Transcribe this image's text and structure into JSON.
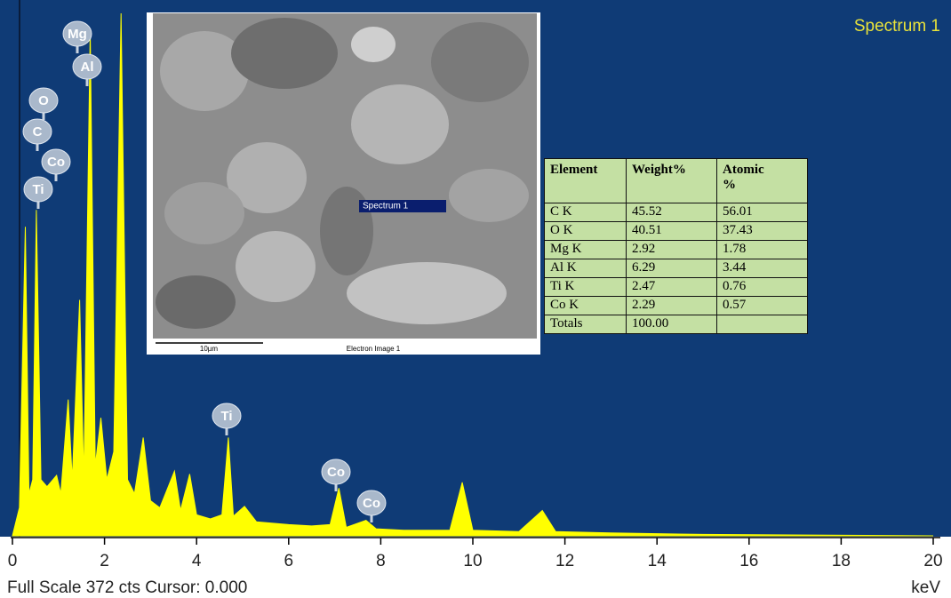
{
  "chart_data": {
    "type": "area",
    "title": "Spectrum 1",
    "x_label": "keV",
    "footer": "Full Scale 372 cts Cursor: 0.000",
    "x": [
      0.0,
      0.15,
      0.28,
      0.36,
      0.44,
      0.52,
      0.62,
      0.75,
      0.96,
      1.05,
      1.21,
      1.3,
      1.46,
      1.55,
      1.69,
      1.8,
      1.92,
      2.05,
      2.2,
      2.36,
      2.5,
      2.65,
      2.84,
      3.0,
      3.2,
      3.52,
      3.65,
      3.85,
      4.0,
      4.3,
      4.55,
      4.69,
      4.8,
      5.04,
      5.3,
      6.0,
      6.5,
      6.9,
      7.09,
      7.25,
      7.68,
      7.9,
      8.5,
      9.5,
      9.77,
      10.0,
      11.0,
      11.51,
      11.8,
      13.0,
      15.0,
      20.0
    ],
    "series": [
      {
        "color": "#ffff00",
        "values": [
          0,
          20,
          220,
          30,
          40,
          232,
          40,
          35,
          43,
          30,
          97,
          40,
          168,
          40,
          360,
          50,
          84,
          40,
          60,
          372,
          40,
          30,
          70,
          25,
          20,
          46,
          18,
          44,
          15,
          12,
          15,
          70,
          14,
          21,
          10,
          8,
          7,
          8,
          34,
          6,
          11,
          5,
          4,
          4,
          38,
          4,
          3,
          18,
          3,
          2,
          1,
          0
        ]
      }
    ],
    "xlim": [
      0,
      20
    ],
    "ylim": [
      0,
      372
    ],
    "xticks": [
      0,
      2,
      4,
      6,
      8,
      10,
      12,
      14,
      16,
      18,
      20
    ],
    "annotations": [
      "Mg",
      "Al",
      "O",
      "C",
      "Co",
      "Ti",
      "Ti",
      "Co",
      "Co"
    ]
  },
  "image": {
    "marker": "Spectrum 1",
    "scale": "10µm",
    "caption": "Electron Image 1"
  },
  "table": {
    "header": [
      "Element",
      "Weight%",
      "Atomic %"
    ],
    "rows": [
      [
        "C K",
        "45.52",
        "56.01"
      ],
      [
        "O K",
        "40.51",
        "37.43"
      ],
      [
        "Mg K",
        "2.92",
        "1.78"
      ],
      [
        "Al K",
        "6.29",
        "3.44"
      ],
      [
        "Ti K",
        "2.47",
        "0.76"
      ],
      [
        "Co K",
        "2.29",
        "0.57"
      ],
      [
        "Totals",
        "100.00",
        null
      ]
    ]
  }
}
